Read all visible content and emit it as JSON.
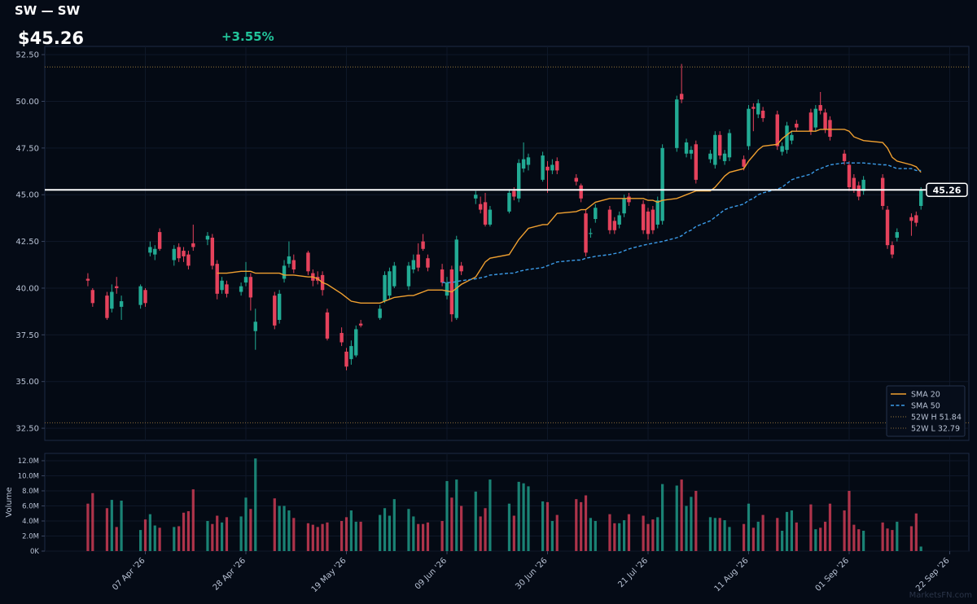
{
  "chart_data": [
    {
      "type": "candlestick",
      "title": "SW — SW",
      "price_label": "$45.26",
      "change_label": "+3.55%",
      "watermark": "MarketsFN.com",
      "up_color": "#22ab94",
      "down_color": "#e5425c",
      "x": [
        "2026-03-26",
        "2026-03-27",
        "2026-03-30",
        "2026-03-31",
        "2026-04-01",
        "2026-04-02",
        "2026-04-06",
        "2026-04-07",
        "2026-04-08",
        "2026-04-09",
        "2026-04-10",
        "2026-04-13",
        "2026-04-14",
        "2026-04-15",
        "2026-04-16",
        "2026-04-17",
        "2026-04-20",
        "2026-04-21",
        "2026-04-22",
        "2026-04-23",
        "2026-04-24",
        "2026-04-27",
        "2026-04-28",
        "2026-04-29",
        "2026-04-30",
        "2026-05-04",
        "2026-05-05",
        "2026-05-06",
        "2026-05-07",
        "2026-05-08",
        "2026-05-11",
        "2026-05-12",
        "2026-05-13",
        "2026-05-14",
        "2026-05-15",
        "2026-05-18",
        "2026-05-19",
        "2026-05-20",
        "2026-05-21",
        "2026-05-22",
        "2026-05-26",
        "2026-05-27",
        "2026-05-28",
        "2026-05-29",
        "2026-06-01",
        "2026-06-02",
        "2026-06-03",
        "2026-06-04",
        "2026-06-05",
        "2026-06-08",
        "2026-06-09",
        "2026-06-10",
        "2026-06-11",
        "2026-06-12",
        "2026-06-15",
        "2026-06-16",
        "2026-06-17",
        "2026-06-18",
        "2026-06-22",
        "2026-06-23",
        "2026-06-24",
        "2026-06-25",
        "2026-06-26",
        "2026-06-29",
        "2026-06-30",
        "2026-07-01",
        "2026-07-02",
        "2026-07-06",
        "2026-07-07",
        "2026-07-08",
        "2026-07-09",
        "2026-07-10",
        "2026-07-13",
        "2026-07-14",
        "2026-07-15",
        "2026-07-16",
        "2026-07-17",
        "2026-07-20",
        "2026-07-21",
        "2026-07-22",
        "2026-07-23",
        "2026-07-24",
        "2026-07-27",
        "2026-07-28",
        "2026-07-29",
        "2026-07-30",
        "2026-07-31",
        "2026-08-03",
        "2026-08-04",
        "2026-08-05",
        "2026-08-06",
        "2026-08-07",
        "2026-08-10",
        "2026-08-11",
        "2026-08-12",
        "2026-08-13",
        "2026-08-14",
        "2026-08-17",
        "2026-08-18",
        "2026-08-19",
        "2026-08-20",
        "2026-08-21",
        "2026-08-24",
        "2026-08-25",
        "2026-08-26",
        "2026-08-27",
        "2026-08-28",
        "2026-08-31",
        "2026-09-01",
        "2026-09-02",
        "2026-09-03",
        "2026-09-04",
        "2026-09-08",
        "2026-09-09",
        "2026-09-10",
        "2026-09-11",
        "2026-09-14",
        "2026-09-15",
        "2026-09-16"
      ],
      "open": [
        40.5,
        39.9,
        39.6,
        38.9,
        40.1,
        39.0,
        39.1,
        39.9,
        41.9,
        41.8,
        43.0,
        41.5,
        42.2,
        42.0,
        41.8,
        42.4,
        42.6,
        42.7,
        41.3,
        39.9,
        40.2,
        39.8,
        40.3,
        40.6,
        37.7,
        39.6,
        38.3,
        40.5,
        41.3,
        41.5,
        41.9,
        40.8,
        40.6,
        40.7,
        38.7,
        37.6,
        36.6,
        36.2,
        36.4,
        38.1,
        38.4,
        39.3,
        39.6,
        40.1,
        40.1,
        41.0,
        41.8,
        42.5,
        41.6,
        41.0,
        39.6,
        41.0,
        38.4,
        41.2,
        44.8,
        44.5,
        44.6,
        43.4,
        44.1,
        45.2,
        44.8,
        46.4,
        46.6,
        45.8,
        46.5,
        46.3,
        46.8,
        45.9,
        45.5,
        44.0,
        42.9,
        43.7,
        44.2,
        43.6,
        43.4,
        44.0,
        44.9,
        44.5,
        44.1,
        44.2,
        43.4,
        43.6,
        47.5,
        50.4,
        47.2,
        47.2,
        47.7,
        46.9,
        46.6,
        48.2,
        46.8,
        47.0,
        46.9,
        47.6,
        49.7,
        49.3,
        49.5,
        49.3,
        47.3,
        47.4,
        47.9,
        48.8,
        49.4,
        48.6,
        49.8,
        49.4,
        49.0,
        47.2,
        46.6,
        45.9,
        45.5,
        45.2,
        45.9,
        44.2,
        42.3,
        42.7,
        43.8,
        43.9,
        44.4
      ],
      "high": [
        40.8,
        40.0,
        39.8,
        40.2,
        40.6,
        39.6,
        40.2,
        40.0,
        42.5,
        42.3,
        43.2,
        42.3,
        42.4,
        42.2,
        42.0,
        43.4,
        43.0,
        42.9,
        41.5,
        40.6,
        40.4,
        40.3,
        41.4,
        40.8,
        38.9,
        39.8,
        39.9,
        41.5,
        42.5,
        41.8,
        42.0,
        41.0,
        40.9,
        40.9,
        38.9,
        37.9,
        36.8,
        37.2,
        38.0,
        38.3,
        39.1,
        40.9,
        41.1,
        41.4,
        41.4,
        41.8,
        42.4,
        42.9,
        41.8,
        41.3,
        40.6,
        41.2,
        42.8,
        41.4,
        45.2,
        44.9,
        45.1,
        44.4,
        45.3,
        45.4,
        46.9,
        47.8,
        47.2,
        47.3,
        46.8,
        46.9,
        47.0,
        46.1,
        45.6,
        44.2,
        43.2,
        44.5,
        44.4,
        43.8,
        44.1,
        45.0,
        45.1,
        44.7,
        44.3,
        44.4,
        44.9,
        47.7,
        50.3,
        52.0,
        48.0,
        47.6,
        47.9,
        47.4,
        48.4,
        48.4,
        47.4,
        48.5,
        47.1,
        49.8,
        49.9,
        50.1,
        49.7,
        49.5,
        47.8,
        48.9,
        48.4,
        49.0,
        49.6,
        49.8,
        50.5,
        49.6,
        49.2,
        47.4,
        46.8,
        46.1,
        45.7,
        46.0,
        46.1,
        44.4,
        42.5,
        43.2,
        44.0,
        44.1,
        45.4
      ],
      "low": [
        40.1,
        39.0,
        38.3,
        38.7,
        39.7,
        38.3,
        38.9,
        39.0,
        41.7,
        41.5,
        42.0,
        41.2,
        41.4,
        41.4,
        41.0,
        42.0,
        42.3,
        41.0,
        39.4,
        39.7,
        39.5,
        39.6,
        40.1,
        38.8,
        36.7,
        37.8,
        38.1,
        40.3,
        41.1,
        40.8,
        40.7,
        40.1,
        40.2,
        39.6,
        37.2,
        36.9,
        35.6,
        35.9,
        36.3,
        37.9,
        38.3,
        39.2,
        39.4,
        40.0,
        39.9,
        40.8,
        40.9,
        42.0,
        40.9,
        40.1,
        39.4,
        38.2,
        38.3,
        40.7,
        44.5,
        44.0,
        43.3,
        43.3,
        44.0,
        44.7,
        44.6,
        46.2,
        46.3,
        45.7,
        45.1,
        46.1,
        46.1,
        45.5,
        44.6,
        41.7,
        42.7,
        43.5,
        42.9,
        42.9,
        43.2,
        43.8,
        44.4,
        42.9,
        42.6,
        42.9,
        43.2,
        43.4,
        47.3,
        49.9,
        47.0,
        46.9,
        45.6,
        46.7,
        46.4,
        46.9,
        46.6,
        46.8,
        46.3,
        47.4,
        48.4,
        49.1,
        48.9,
        47.4,
        47.1,
        47.2,
        47.7,
        48.4,
        48.2,
        48.4,
        49.3,
        48.3,
        47.9,
        46.6,
        45.2,
        45.1,
        44.7,
        45.0,
        44.2,
        42.1,
        41.6,
        42.5,
        42.8,
        43.3,
        44.2
      ],
      "close": [
        40.4,
        39.2,
        38.4,
        39.8,
        40.0,
        39.3,
        40.1,
        39.2,
        42.2,
        42.1,
        42.1,
        42.1,
        41.6,
        41.7,
        41.2,
        42.2,
        42.8,
        41.2,
        39.7,
        40.4,
        39.7,
        40.1,
        40.6,
        39.5,
        38.2,
        38.0,
        39.7,
        41.2,
        41.7,
        41.0,
        40.9,
        40.4,
        40.4,
        39.9,
        37.3,
        37.1,
        35.8,
        36.9,
        37.8,
        38.0,
        38.9,
        40.7,
        40.9,
        41.2,
        41.2,
        41.5,
        41.1,
        42.1,
        41.1,
        40.3,
        40.3,
        38.6,
        42.6,
        40.9,
        45.0,
        44.2,
        43.4,
        44.2,
        45.1,
        44.9,
        46.7,
        46.9,
        47.0,
        47.1,
        46.3,
        46.6,
        46.3,
        45.7,
        44.8,
        41.9,
        42.95,
        44.3,
        43.1,
        43.1,
        43.9,
        44.8,
        44.6,
        43.1,
        42.9,
        43.1,
        44.7,
        47.5,
        50.1,
        50.1,
        47.8,
        47.4,
        45.8,
        47.2,
        48.2,
        47.1,
        47.2,
        48.3,
        46.5,
        49.6,
        49.6,
        49.9,
        49.1,
        47.6,
        47.6,
        48.7,
        48.2,
        48.6,
        48.4,
        49.6,
        49.5,
        48.5,
        48.1,
        46.8,
        45.4,
        45.3,
        44.9,
        45.8,
        44.4,
        42.3,
        41.8,
        43.0,
        43.6,
        43.5,
        45.26
      ],
      "series": [
        {
          "name": "SMA 20",
          "color": "#f0a030",
          "dashed": false,
          "values": [
            null,
            null,
            null,
            null,
            null,
            null,
            null,
            null,
            null,
            null,
            null,
            null,
            null,
            null,
            null,
            null,
            null,
            null,
            40.8,
            40.8,
            40.8,
            40.9,
            40.9,
            40.9,
            40.8,
            40.8,
            40.8,
            40.7,
            40.7,
            40.7,
            40.6,
            40.6,
            40.5,
            40.3,
            40.2,
            39.7,
            39.5,
            39.3,
            39.25,
            39.2,
            39.2,
            39.3,
            39.4,
            39.5,
            39.6,
            39.6,
            39.7,
            39.8,
            39.9,
            39.9,
            39.85,
            39.8,
            40.0,
            40.2,
            40.6,
            41.0,
            41.4,
            41.6,
            41.8,
            42.2,
            42.6,
            42.9,
            43.2,
            43.4,
            43.4,
            43.7,
            44.0,
            44.1,
            44.2,
            44.2,
            44.4,
            44.6,
            44.8,
            44.8,
            44.8,
            44.8,
            44.8,
            44.8,
            44.7,
            44.7,
            44.6,
            44.7,
            44.8,
            44.9,
            45.0,
            45.1,
            45.2,
            45.2,
            45.4,
            45.7,
            46.0,
            46.2,
            46.4,
            46.8,
            47.1,
            47.4,
            47.6,
            47.7,
            48.0,
            48.2,
            48.4,
            48.4,
            48.4,
            48.4,
            48.5,
            48.5,
            48.5,
            48.5,
            48.4,
            48.1,
            48.0,
            47.9,
            47.8,
            47.5,
            47.0,
            46.8,
            46.6,
            46.5,
            46.2
          ]
        },
        {
          "name": "SMA 50",
          "color": "#3b9be8",
          "dashed": true,
          "values": [
            null,
            null,
            null,
            null,
            null,
            null,
            null,
            null,
            null,
            null,
            null,
            null,
            null,
            null,
            null,
            null,
            null,
            null,
            null,
            null,
            null,
            null,
            null,
            null,
            null,
            null,
            null,
            null,
            null,
            null,
            null,
            null,
            null,
            null,
            null,
            null,
            null,
            null,
            null,
            null,
            null,
            null,
            null,
            null,
            null,
            null,
            null,
            null,
            null,
            40.3,
            40.3,
            40.3,
            40.35,
            40.4,
            40.5,
            40.55,
            40.6,
            40.7,
            40.8,
            40.8,
            40.9,
            40.95,
            41.0,
            41.1,
            41.2,
            41.3,
            41.4,
            41.5,
            41.5,
            41.6,
            41.65,
            41.7,
            41.8,
            41.85,
            41.9,
            42.0,
            42.1,
            42.3,
            42.35,
            42.4,
            42.45,
            42.5,
            42.7,
            42.8,
            43.0,
            43.1,
            43.3,
            43.6,
            43.8,
            44.0,
            44.2,
            44.3,
            44.5,
            44.7,
            44.8,
            45.0,
            45.1,
            45.3,
            45.4,
            45.6,
            45.8,
            45.9,
            46.1,
            46.3,
            46.4,
            46.5,
            46.6,
            46.7,
            46.7,
            46.7,
            46.7,
            46.7,
            46.6,
            46.6,
            46.5,
            46.4,
            46.4,
            46.3,
            46.3
          ]
        }
      ],
      "reference_lines": [
        {
          "label": "52W H 51.84",
          "value": 51.84,
          "color": "#9a7a3a"
        },
        {
          "label": "52W L 32.79",
          "value": 32.79,
          "color": "#8a6a3a"
        }
      ],
      "last_price": 45.26,
      "xlim": [
        "2026-03-17",
        "2026-09-26"
      ],
      "xticks": [
        {
          "value": "2026-04-07",
          "label": "07 Apr '26"
        },
        {
          "value": "2026-04-28",
          "label": "28 Apr '26"
        },
        {
          "value": "2026-05-19",
          "label": "19 May '26"
        },
        {
          "value": "2026-06-09",
          "label": "09 Jun '26"
        },
        {
          "value": "2026-06-30",
          "label": "30 Jun '26"
        },
        {
          "value": "2026-07-21",
          "label": "21 Jul '26"
        },
        {
          "value": "2026-08-11",
          "label": "11 Aug '26"
        },
        {
          "value": "2026-09-01",
          "label": "01 Sep '26"
        },
        {
          "value": "2026-09-22",
          "label": "22 Sep '26"
        }
      ],
      "ylim": [
        31.85,
        52.94
      ],
      "yticks": [
        {
          "value": 32.5,
          "label": "32.50"
        },
        {
          "value": 35,
          "label": "35.00"
        },
        {
          "value": 37.5,
          "label": "37.50"
        },
        {
          "value": 40,
          "label": "40.00"
        },
        {
          "value": 42.5,
          "label": "42.50"
        },
        {
          "value": 45,
          "label": "45.00"
        },
        {
          "value": 47.5,
          "label": "47.50"
        },
        {
          "value": 50,
          "label": "50.00"
        },
        {
          "value": 52.5,
          "label": "52.50"
        }
      ],
      "grid": true,
      "legend": "lower right"
    },
    {
      "type": "bar",
      "ylabel": "Volume",
      "values": [
        6300000,
        7700000,
        5700000,
        6800000,
        3200000,
        6700000,
        2800000,
        4200000,
        4900000,
        3400000,
        3100000,
        3200000,
        3300000,
        5100000,
        5300000,
        8200000,
        4000000,
        3600000,
        4700000,
        3800000,
        4500000,
        4600000,
        7100000,
        5600000,
        12300000,
        7000000,
        6000000,
        6000000,
        5400000,
        4400000,
        3700000,
        3500000,
        3200000,
        3600000,
        3800000,
        4000000,
        4500000,
        5400000,
        3900000,
        3900000,
        4800000,
        5700000,
        4700000,
        6900000,
        5600000,
        4600000,
        3600000,
        3600000,
        3800000,
        4000000,
        9300000,
        7100000,
        9500000,
        6000000,
        7900000,
        4600000,
        5700000,
        9500000,
        6300000,
        4700000,
        9200000,
        9000000,
        8600000,
        6600000,
        6500000,
        4000000,
        4800000,
        6900000,
        6500000,
        7400000,
        4400000,
        4000000,
        4900000,
        3700000,
        3700000,
        4100000,
        4900000,
        4700000,
        3600000,
        4200000,
        4500000,
        8900000,
        8700000,
        9500000,
        6000000,
        7200000,
        8000000,
        4500000,
        4400000,
        4400000,
        4100000,
        3200000,
        3600000,
        6300000,
        3100000,
        3900000,
        4800000,
        4400000,
        2700000,
        5200000,
        5400000,
        3800000,
        6200000,
        2900000,
        3100000,
        3900000,
        6300000,
        5400000,
        8000000,
        3500000,
        2900000,
        2700000,
        3800000,
        3000000,
        2800000,
        3900000,
        3300000,
        5000000,
        600000
      ],
      "ylim": [
        0,
        12970000
      ],
      "yticks": [
        {
          "value": 0,
          "label": "0K"
        },
        {
          "value": 2000000,
          "label": "2.0M"
        },
        {
          "value": 4000000,
          "label": "4.0M"
        },
        {
          "value": 6000000,
          "label": "6.0M"
        },
        {
          "value": 8000000,
          "label": "8.0M"
        },
        {
          "value": 10000000,
          "label": "10.0M"
        },
        {
          "value": 12000000,
          "label": "12.0M"
        }
      ]
    }
  ]
}
